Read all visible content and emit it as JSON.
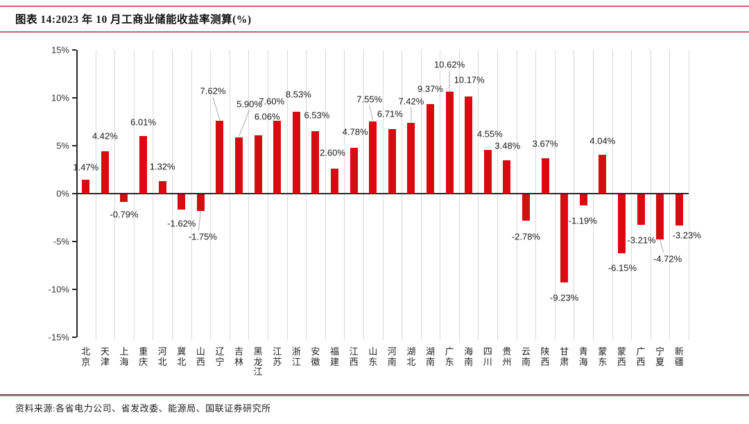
{
  "header": {
    "title": "图表 14:2023 年 10 月工商业储能收益率测算(%)"
  },
  "footer": {
    "source": "资料来源:各省电力公司、省发改委、能源局、国联证券研究所"
  },
  "theme": {
    "bar_color": "#d80b10",
    "rule_color": "#d85b72",
    "gridline_color": "#d9d9d9",
    "axis_color": "#262626",
    "leader_color": "#aaaaaa"
  },
  "chart_data": {
    "type": "bar",
    "title": "2023年10月工商业储能收益率测算(%)",
    "categories": [
      "北京",
      "天津",
      "上海",
      "重庆",
      "河北",
      "冀北",
      "山西",
      "辽宁",
      "吉林",
      "黑龙江",
      "江苏",
      "浙江",
      "安徽",
      "福建",
      "江西",
      "山东",
      "河南",
      "湖北",
      "湖南",
      "广东",
      "海南",
      "四川",
      "贵州",
      "云南",
      "陕西",
      "甘肃",
      "青海",
      "蒙东",
      "蒙西",
      "广西",
      "宁夏",
      "新疆"
    ],
    "values": [
      1.47,
      4.42,
      -0.79,
      6.01,
      1.32,
      -1.62,
      -1.75,
      7.62,
      5.9,
      6.06,
      7.6,
      8.53,
      6.53,
      2.6,
      4.78,
      7.55,
      6.71,
      7.42,
      9.37,
      10.62,
      10.17,
      4.55,
      3.48,
      -2.78,
      3.67,
      -9.23,
      -1.19,
      4.04,
      -6.15,
      -3.21,
      -4.72,
      -3.23
    ],
    "point_labels": [
      "1.47%",
      "4.42%",
      "-0.79%",
      "6.01%",
      "1.32%",
      "-1.62%",
      "-1.75%",
      "7.62%",
      "5.90%",
      "6.06%",
      "7.60%",
      "8.53%",
      "6.53%",
      "2.60%",
      "4.78%",
      "7.55%",
      "6.71%",
      "7.42%",
      "9.37%",
      "10.62%",
      "10.17%",
      "4.55%",
      "3.48%",
      "-2.78%",
      "3.67%",
      "-9.23%",
      "-1.19%",
      "4.04%",
      "-6.15%",
      "-3.21%",
      "-4.72%",
      "-3.23%"
    ],
    "xlabel": "",
    "ylabel": "",
    "ylim": [
      -15,
      15
    ],
    "ytick_step": 5,
    "ytick_labels": [
      "15%",
      "10%",
      "5%",
      "0%",
      "-5%",
      "-10%",
      "-15%"
    ],
    "grid": "vertical-only",
    "legend": "none",
    "label_dx": [
      0,
      0,
      0,
      0,
      0,
      0,
      3,
      -10,
      15,
      13,
      -8,
      3,
      2,
      -3,
      2,
      -5,
      -3,
      0,
      0,
      0,
      1,
      3,
      1,
      0,
      0,
      0,
      -1,
      0,
      1,
      1,
      11,
      11
    ],
    "label_dy": [
      -8,
      -12,
      8,
      -10,
      -11,
      10,
      27,
      -33,
      -38,
      -17,
      -18,
      -15,
      -13,
      -13,
      -13,
      -22,
      -12,
      -21,
      -12,
      -29,
      -14,
      -13,
      -11,
      13,
      -11,
      12,
      12,
      -10,
      11,
      12,
      18,
      4
    ],
    "leader_indices": [
      6,
      7,
      8,
      15,
      17,
      19,
      30
    ]
  }
}
